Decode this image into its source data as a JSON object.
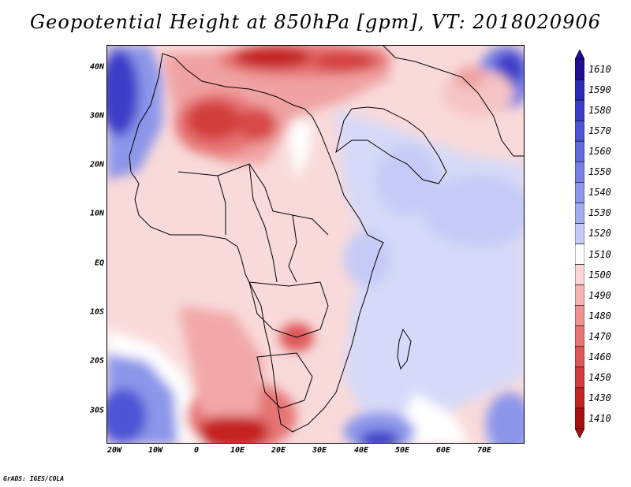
{
  "title": "Geopotential Height at 850hPa [gpm], VT: 2018020906",
  "y_labels": [
    "40N",
    "30N",
    "20N",
    "10N",
    "EQ",
    "10S",
    "20S",
    "30S"
  ],
  "x_labels": [
    "20W",
    "10W",
    "0",
    "10E",
    "20E",
    "30E",
    "40E",
    "50E",
    "60E",
    "70E"
  ],
  "colorbar": {
    "levels": [
      "1610",
      "1590",
      "1580",
      "1570",
      "1560",
      "1550",
      "1540",
      "1530",
      "1520",
      "1510",
      "1500",
      "1490",
      "1480",
      "1470",
      "1460",
      "1450",
      "1430",
      "1410"
    ],
    "colors": [
      "#1e0f96",
      "#2b2ab4",
      "#3c3ec8",
      "#4d55d6",
      "#6169de",
      "#757fe4",
      "#8c96ea",
      "#a3acf0",
      "#c5cbf6",
      "#ffffff",
      "#fbd6d6",
      "#f6b4b4",
      "#ee9292",
      "#e67474",
      "#dd5656",
      "#d33c3c",
      "#c52424",
      "#a81010"
    ]
  },
  "footer": "GrADS: IGES/COLA"
}
